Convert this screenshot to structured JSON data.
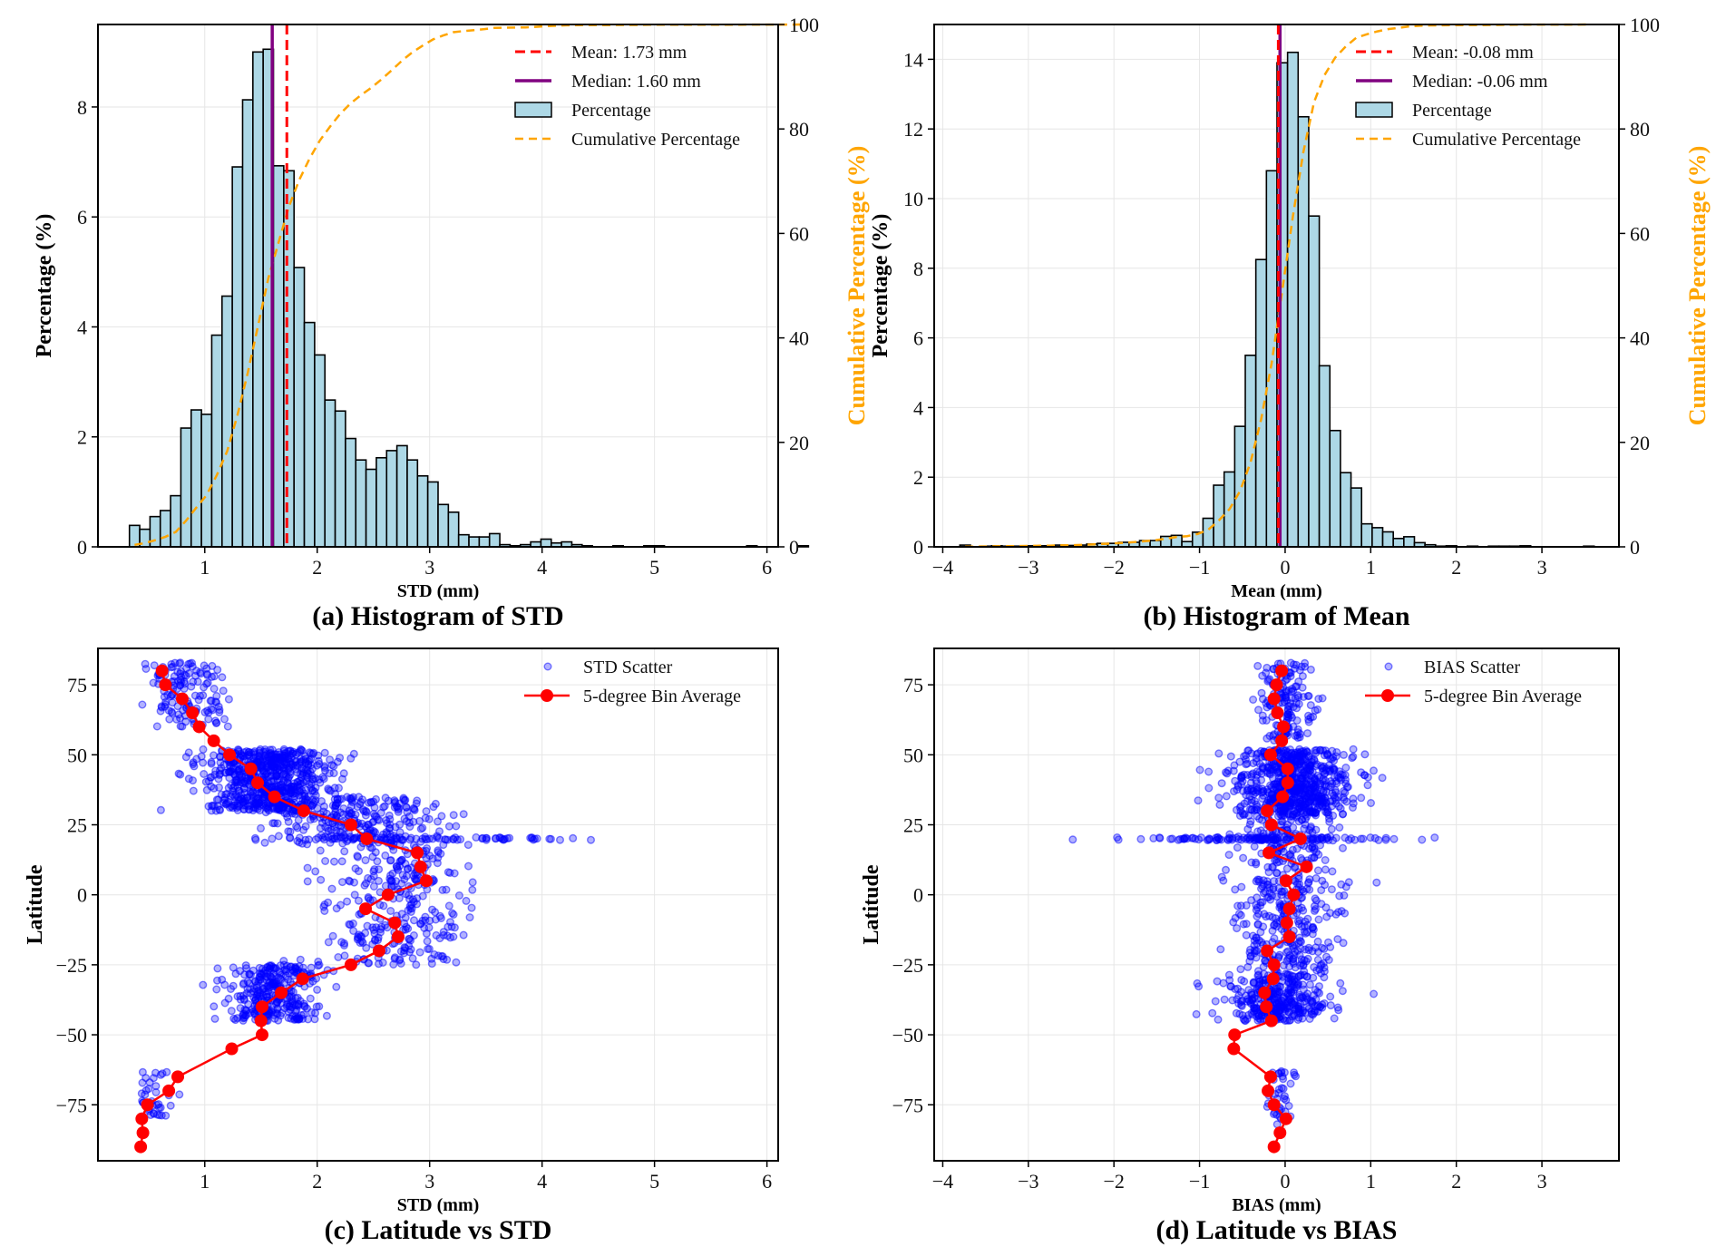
{
  "chart_data": [
    {
      "id": "a",
      "type": "bar",
      "subtype": "histogram-with-cumulative",
      "caption": "(a) Histogram of STD",
      "xlabel": "STD (mm)",
      "ylabel": "Percentage (%)",
      "y2label": "Cumulative Percentage (%)",
      "xlim": [
        0.05,
        6.1
      ],
      "ylim": [
        0,
        9.5
      ],
      "y2lim": [
        0,
        100
      ],
      "xticks": [
        1,
        2,
        3,
        4,
        5,
        6
      ],
      "yticks": [
        0,
        2,
        4,
        6,
        8
      ],
      "y2ticks": [
        0,
        20,
        40,
        60,
        80,
        100
      ],
      "grid": true,
      "legend_position": "top-right",
      "bin_start": 0.33,
      "bin_width": 0.0915,
      "values": [
        0.39,
        0.32,
        0.55,
        0.66,
        0.93,
        2.16,
        2.49,
        2.41,
        3.85,
        4.56,
        6.91,
        8.13,
        9.0,
        9.05,
        6.93,
        6.84,
        5.08,
        4.08,
        3.49,
        2.67,
        2.47,
        1.97,
        1.58,
        1.41,
        1.62,
        1.75,
        1.84,
        1.58,
        1.29,
        1.18,
        0.77,
        0.63,
        0.22,
        0.18,
        0.18,
        0.24,
        0.04,
        0.02,
        0.04,
        0.09,
        0.14,
        0.07,
        0.09,
        0.04,
        0.02,
        0,
        0,
        0.02,
        0,
        0,
        0.02,
        0.02,
        0,
        0,
        0,
        0,
        0,
        0,
        0,
        0,
        0.02,
        0,
        0,
        0,
        0,
        0.02
      ],
      "mean": 1.73,
      "median": 1.6,
      "legend": [
        "Mean: 1.73 mm",
        "Median: 1.60 mm",
        "Percentage",
        "Cumulative Percentage"
      ]
    },
    {
      "id": "b",
      "type": "bar",
      "subtype": "histogram-with-cumulative",
      "caption": "(b) Histogram of Mean",
      "xlabel": "Mean (mm)",
      "ylabel": "Percentage (%)",
      "y2label": "Cumulative Percentage (%)",
      "xlim": [
        -4.1,
        3.9
      ],
      "ylim": [
        0,
        15
      ],
      "y2lim": [
        0,
        100
      ],
      "xticks": [
        -4,
        -3,
        -2,
        -1,
        0,
        1,
        2,
        3
      ],
      "yticks": [
        0,
        2,
        4,
        6,
        8,
        10,
        12,
        14
      ],
      "y2ticks": [
        0,
        20,
        40,
        60,
        80,
        100
      ],
      "grid": true,
      "legend_position": "top-right",
      "bin_start": -3.8,
      "bin_width": 0.1235,
      "values": [
        0.05,
        0,
        0.02,
        0.03,
        0.02,
        0.02,
        0.03,
        0.03,
        0.03,
        0.05,
        0.04,
        0.05,
        0.08,
        0.1,
        0.1,
        0.13,
        0.13,
        0.18,
        0.18,
        0.3,
        0.33,
        0.15,
        0.42,
        0.82,
        1.77,
        2.15,
        3.46,
        5.5,
        8.25,
        10.8,
        13.9,
        14.2,
        12.35,
        9.5,
        5.2,
        3.34,
        2.13,
        1.69,
        0.66,
        0.55,
        0.43,
        0.24,
        0.29,
        0.12,
        0.06,
        0.02,
        0.03,
        0,
        0.02,
        0,
        0.02,
        0.02,
        0.02,
        0.03,
        0,
        0,
        0,
        0,
        0,
        0.02
      ],
      "mean": -0.08,
      "median": -0.06,
      "legend": [
        "Mean: -0.08 mm",
        "Median: -0.06 mm",
        "Percentage",
        "Cumulative Percentage"
      ]
    },
    {
      "id": "c",
      "type": "scatter",
      "caption": "(c) Latitude vs STD",
      "xlabel": "STD (mm)",
      "ylabel": "Latitude",
      "xlim": [
        0.05,
        6.1
      ],
      "ylim": [
        -95,
        88
      ],
      "xticks": [
        1,
        2,
        3,
        4,
        5,
        6
      ],
      "yticks": [
        -75,
        -50,
        -25,
        0,
        25,
        50,
        75
      ],
      "grid": true,
      "legend_position": "top-right",
      "legend": [
        "STD Scatter",
        "5-degree Bin Average"
      ],
      "bin_average": {
        "lat": [
          80,
          75,
          70,
          65,
          60,
          55,
          50,
          45,
          40,
          35,
          30,
          25,
          20,
          15,
          10,
          5,
          0,
          -5,
          -10,
          -15,
          -20,
          -25,
          -30,
          -35,
          -40,
          -45,
          -50,
          -55,
          -65,
          -70,
          -75,
          -80,
          -85,
          -90
        ],
        "x": [
          0.62,
          0.65,
          0.8,
          0.89,
          0.95,
          1.08,
          1.22,
          1.41,
          1.47,
          1.62,
          1.88,
          2.3,
          2.44,
          2.89,
          2.92,
          2.97,
          2.63,
          2.43,
          2.69,
          2.72,
          2.55,
          2.3,
          1.87,
          1.68,
          1.51,
          1.5,
          1.51,
          1.24,
          0.76,
          0.68,
          0.49,
          0.44,
          0.45,
          0.43
        ]
      },
      "scatter_clusters": [
        {
          "lat": [
            60,
            83
          ],
          "x_center": 0.85,
          "x_spread": 0.28,
          "n": 140
        },
        {
          "lat": [
            30,
            52
          ],
          "x_center": 1.55,
          "x_spread": 0.45,
          "n": 700
        },
        {
          "lat": [
            18,
            35
          ],
          "x_center": 2.3,
          "x_spread": 0.7,
          "n": 260
        },
        {
          "lat": [
            19.5,
            20.5
          ],
          "x_center": 2.9,
          "x_spread": 1.2,
          "n": 80
        },
        {
          "lat": [
            -25,
            18
          ],
          "x_center": 2.7,
          "x_spread": 0.5,
          "n": 300
        },
        {
          "lat": [
            -45,
            -25
          ],
          "x_center": 1.6,
          "x_spread": 0.35,
          "n": 320
        },
        {
          "lat": [
            -80,
            -63
          ],
          "x_center": 0.55,
          "x_spread": 0.15,
          "n": 40
        }
      ]
    },
    {
      "id": "d",
      "type": "scatter",
      "caption": "(d) Latitude vs BIAS",
      "xlabel": "BIAS (mm)",
      "ylabel": "Latitude",
      "xlim": [
        -4.1,
        3.9
      ],
      "ylim": [
        -95,
        88
      ],
      "xticks": [
        -4,
        -3,
        -2,
        -1,
        0,
        1,
        2,
        3
      ],
      "yticks": [
        -75,
        -50,
        -25,
        0,
        25,
        50,
        75
      ],
      "grid": true,
      "legend_position": "top-right",
      "legend": [
        "BIAS Scatter",
        "5-degree Bin Average"
      ],
      "bin_average": {
        "lat": [
          80,
          75,
          70,
          65,
          60,
          55,
          50,
          45,
          40,
          35,
          30,
          25,
          20,
          15,
          10,
          5,
          0,
          -5,
          -10,
          -15,
          -20,
          -25,
          -30,
          -35,
          -40,
          -45,
          -50,
          -55,
          -65,
          -70,
          -75,
          -80,
          -85,
          -90
        ],
        "x": [
          -0.04,
          -0.1,
          -0.13,
          -0.09,
          -0.02,
          -0.04,
          -0.17,
          0.03,
          0.03,
          -0.03,
          -0.21,
          -0.16,
          0.18,
          -0.19,
          0.25,
          0.01,
          0.1,
          0.05,
          0.02,
          0.05,
          -0.21,
          -0.13,
          -0.14,
          -0.24,
          -0.22,
          -0.16,
          -0.59,
          -0.6,
          -0.17,
          -0.2,
          -0.13,
          0.01,
          -0.06,
          -0.13
        ]
      },
      "scatter_clusters": [
        {
          "lat": [
            55,
            83
          ],
          "x_center": 0.0,
          "x_spread": 0.3,
          "n": 150
        },
        {
          "lat": [
            28,
            52
          ],
          "x_center": 0.1,
          "x_spread": 0.55,
          "n": 700
        },
        {
          "lat": [
            19.5,
            20.5
          ],
          "x_center": -0.3,
          "x_spread": 1.3,
          "n": 120
        },
        {
          "lat": [
            -30,
            28
          ],
          "x_center": 0.0,
          "x_spread": 0.5,
          "n": 450
        },
        {
          "lat": [
            -45,
            -30
          ],
          "x_center": -0.1,
          "x_spread": 0.5,
          "n": 320
        },
        {
          "lat": [
            -82,
            -63
          ],
          "x_center": -0.05,
          "x_spread": 0.15,
          "n": 40
        }
      ]
    }
  ],
  "colors": {
    "bar_fill": "#ADD8E6",
    "bar_edge": "#000000",
    "mean_line": "#FF0000",
    "median_line": "#800080",
    "cumulative_line": "#FFA500",
    "scatter": "#0000FF",
    "bin_average": "#FF0000"
  }
}
